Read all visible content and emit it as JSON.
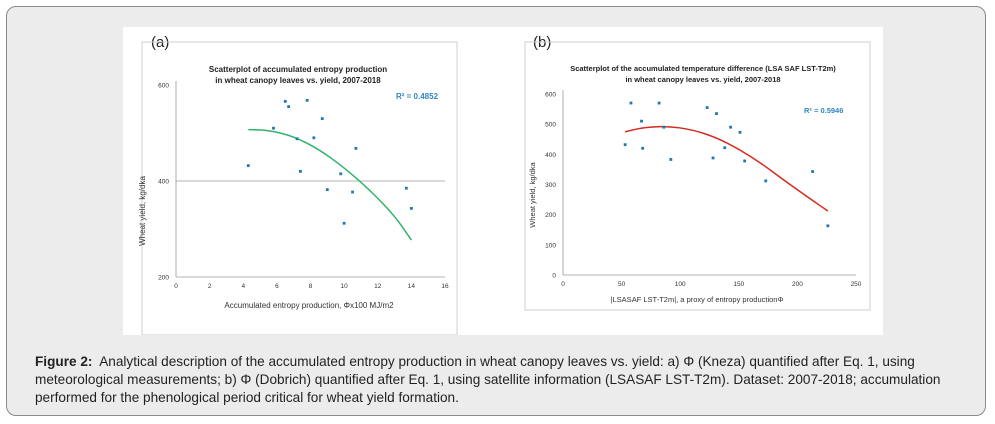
{
  "colors": {
    "frame_bg": "#ececec",
    "panel_bg": "#ffffff",
    "dots": "#1f77b4",
    "fit_a": "#2fb36a",
    "fit_b": "#d62a1f",
    "r2": "#2e86c1"
  },
  "caption": {
    "label": "Figure 2:",
    "text": "Analytical description of the accumulated entropy production in wheat canopy leaves vs. yield: a) Φ (Kneza) quantified after Eq. 1, using meteorological measurements; b) Φ (Dobrich) quantified after Eq. 1, using satellite information (LSASAF LST-T2m). Dataset: 2007-2018; accumulation performed for the phenological period critical for wheat yield formation."
  },
  "chart_data": [
    {
      "type": "scatter",
      "panel_label": "(a)",
      "title": "Scatterplot of accumulated entropy production",
      "subtitle": "in wheat canopy leaves vs. yield, 2007-2018",
      "xlabel": "Accumulated entropy production, Φx100 MJ/m2",
      "ylabel": "Wheat yield, kg/dka",
      "xlim": [
        0,
        16
      ],
      "ylim": [
        200,
        600
      ],
      "xticks": [
        0,
        2,
        4,
        6,
        8,
        10,
        12,
        14,
        16
      ],
      "yticks": [
        200,
        400,
        600
      ],
      "hline": 400,
      "r2": "R² = 0.4852",
      "points": [
        {
          "x": 4.3,
          "y": 432
        },
        {
          "x": 5.8,
          "y": 510
        },
        {
          "x": 6.5,
          "y": 566
        },
        {
          "x": 6.7,
          "y": 555
        },
        {
          "x": 7.2,
          "y": 488
        },
        {
          "x": 7.4,
          "y": 420
        },
        {
          "x": 7.8,
          "y": 568
        },
        {
          "x": 8.2,
          "y": 490
        },
        {
          "x": 8.7,
          "y": 530
        },
        {
          "x": 9.0,
          "y": 382
        },
        {
          "x": 9.8,
          "y": 415
        },
        {
          "x": 10.0,
          "y": 312
        },
        {
          "x": 10.5,
          "y": 377
        },
        {
          "x": 10.7,
          "y": 468
        },
        {
          "x": 13.7,
          "y": 385
        },
        {
          "x": 14.0,
          "y": 343
        }
      ],
      "fit": {
        "degree": 2,
        "x_range": [
          4.3,
          14.0
        ],
        "curve": [
          [
            4.3,
            507
          ],
          [
            5.5,
            506
          ],
          [
            7.0,
            493
          ],
          [
            8.5,
            466
          ],
          [
            10.0,
            428
          ],
          [
            11.5,
            382
          ],
          [
            13.0,
            328
          ],
          [
            14.0,
            277
          ]
        ]
      }
    },
    {
      "type": "scatter",
      "panel_label": "(b)",
      "title": "Scatterplot of the accumulated temperature difference (LSA SAF LST-T2m)",
      "subtitle": "in wheat canopy leaves vs. yield, 2007-2018",
      "xlabel": "|LSASAF LST-T2m|, a proxy of entropy productionΦ",
      "ylabel": "Wheat yield, kg/dka",
      "xlim": [
        0,
        250
      ],
      "ylim": [
        0,
        600
      ],
      "xticks": [
        0,
        50,
        100,
        150,
        200,
        250
      ],
      "yticks": [
        0,
        100,
        200,
        300,
        400,
        500,
        600
      ],
      "r2": "R² = 0.5946",
      "points": [
        {
          "x": 53,
          "y": 432
        },
        {
          "x": 58,
          "y": 570
        },
        {
          "x": 67,
          "y": 510
        },
        {
          "x": 68,
          "y": 420
        },
        {
          "x": 82,
          "y": 570
        },
        {
          "x": 86,
          "y": 490
        },
        {
          "x": 92,
          "y": 383
        },
        {
          "x": 123,
          "y": 555
        },
        {
          "x": 128,
          "y": 388
        },
        {
          "x": 131,
          "y": 535
        },
        {
          "x": 138,
          "y": 422
        },
        {
          "x": 143,
          "y": 490
        },
        {
          "x": 151,
          "y": 473
        },
        {
          "x": 155,
          "y": 378
        },
        {
          "x": 173,
          "y": 312
        },
        {
          "x": 213,
          "y": 343
        },
        {
          "x": 226,
          "y": 163
        }
      ],
      "fit": {
        "degree": 2,
        "x_range": [
          53,
          226
        ],
        "curve": [
          [
            53,
            475
          ],
          [
            70,
            490
          ],
          [
            90,
            493
          ],
          [
            110,
            482
          ],
          [
            130,
            457
          ],
          [
            150,
            418
          ],
          [
            170,
            368
          ],
          [
            190,
            310
          ],
          [
            210,
            255
          ],
          [
            226,
            212
          ]
        ]
      }
    }
  ]
}
